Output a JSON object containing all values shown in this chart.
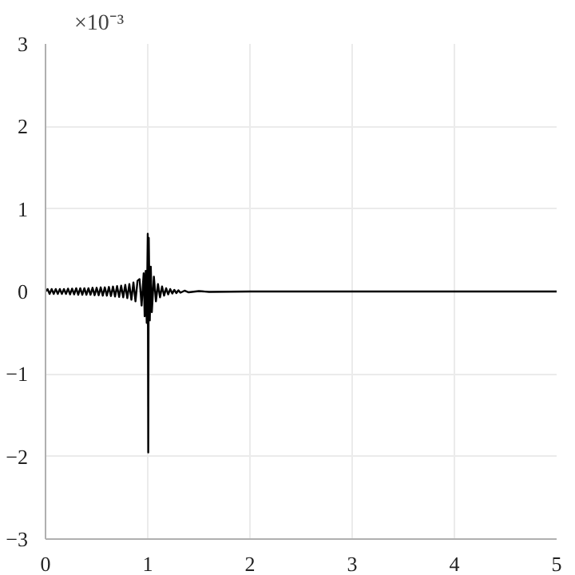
{
  "chart_data": {
    "type": "line",
    "annotations": [
      "×10⁻³"
    ],
    "x": [
      0,
      0.02,
      0.04,
      0.06,
      0.08,
      0.1,
      0.12,
      0.14,
      0.16,
      0.18,
      0.2,
      0.22,
      0.24,
      0.26,
      0.28,
      0.3,
      0.32,
      0.34,
      0.36,
      0.38,
      0.4,
      0.42,
      0.44,
      0.46,
      0.48,
      0.5,
      0.52,
      0.54,
      0.56,
      0.58,
      0.6,
      0.62,
      0.64,
      0.66,
      0.68,
      0.7,
      0.72,
      0.74,
      0.76,
      0.78,
      0.8,
      0.82,
      0.84,
      0.86,
      0.88,
      0.9,
      0.92,
      0.94,
      0.96,
      0.97,
      0.98,
      0.99,
      1.0,
      1.005,
      1.01,
      1.02,
      1.03,
      1.04,
      1.06,
      1.08,
      1.1,
      1.12,
      1.14,
      1.16,
      1.18,
      1.2,
      1.22,
      1.24,
      1.26,
      1.28,
      1.3,
      1.32,
      1.36,
      1.4,
      1.5,
      1.6,
      2,
      5
    ],
    "series": [
      {
        "color": "#000000",
        "values": [
          0,
          0.03,
          -0.03,
          0.03,
          -0.03,
          0.03,
          -0.03,
          0.03,
          -0.03,
          0.03,
          -0.03,
          0.035,
          -0.035,
          0.035,
          -0.035,
          0.04,
          -0.04,
          0.04,
          -0.04,
          0.04,
          -0.04,
          0.04,
          -0.04,
          0.045,
          -0.045,
          0.045,
          -0.045,
          0.05,
          -0.05,
          0.05,
          -0.05,
          0.055,
          -0.055,
          0.06,
          -0.06,
          0.065,
          -0.065,
          0.07,
          -0.07,
          0.08,
          -0.08,
          0.09,
          -0.1,
          0.11,
          -0.12,
          0.13,
          0.15,
          -0.17,
          0.22,
          -0.3,
          0.25,
          -0.38,
          0.7,
          -1.95,
          0.65,
          -0.35,
          0.3,
          -0.25,
          0.18,
          -0.12,
          0.09,
          -0.07,
          0.06,
          -0.05,
          0.04,
          -0.035,
          0.03,
          -0.025,
          0.02,
          -0.02,
          0.015,
          -0.015,
          0.01,
          -0.01,
          0.005,
          -0.005,
          0,
          0
        ]
      }
    ],
    "xlim": [
      0,
      5
    ],
    "ylim": [
      -3,
      3
    ],
    "xticks": [
      0,
      1,
      2,
      3,
      4,
      5
    ],
    "yticks": [
      -3,
      -2,
      -1,
      0,
      1,
      2,
      3
    ],
    "grid": true,
    "line_style": "solid"
  }
}
